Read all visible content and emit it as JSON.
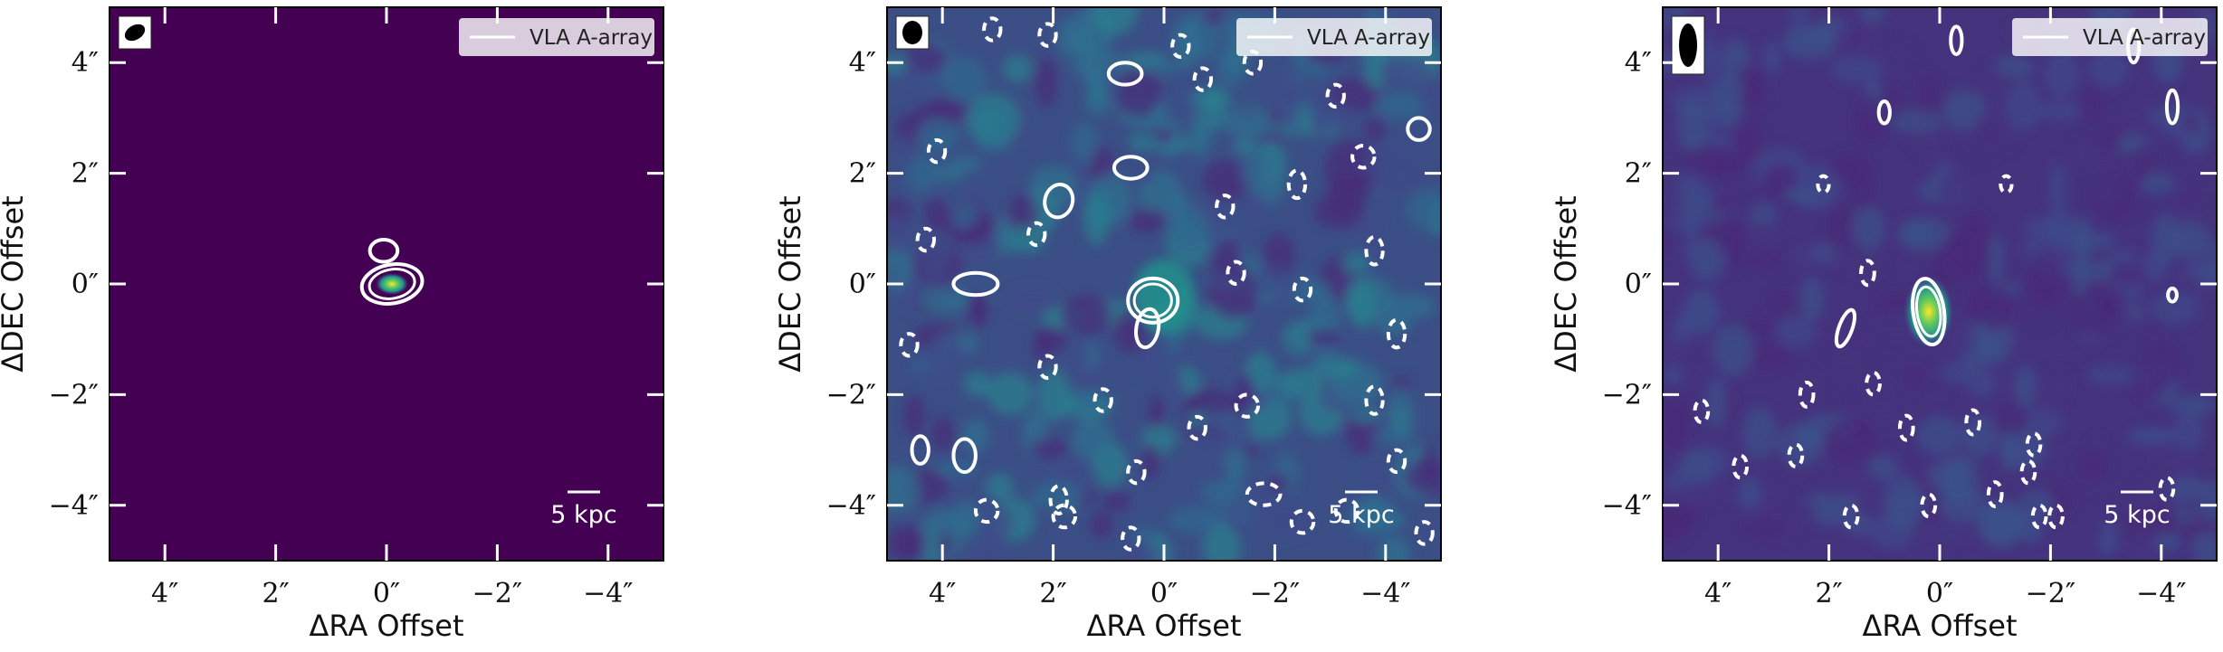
{
  "chart_data": [
    {
      "type": "heatmap",
      "panel": "left",
      "xlabel": "ΔRA Offset",
      "ylabel": "ΔDEC Offset",
      "xlim": [
        5,
        -5
      ],
      "ylim": [
        -5,
        5
      ],
      "xticks": [
        4,
        2,
        0,
        -2,
        -4
      ],
      "yticks": [
        4,
        2,
        0,
        -2,
        -4
      ],
      "xtick_labels": [
        "4″",
        "2″",
        "0″",
        "−2″",
        "−4″"
      ],
      "ytick_labels": [
        "4″",
        "2″",
        "0″",
        "−2″",
        "−4″"
      ],
      "legend": {
        "label": "VLA A-array",
        "placement": "top-right"
      },
      "scale_bar": {
        "label": "5 kpc"
      },
      "beam": {
        "placement": "top-left"
      },
      "colormap": "viridis",
      "background_color": "#440154",
      "source": {
        "ra": -0.1,
        "dec": 0.0
      },
      "contours_positive": [
        [
          -0.1,
          0.0,
          0.55,
          0.35,
          -10
        ],
        [
          0.05,
          0.6,
          0.25,
          0.2,
          0
        ]
      ],
      "contours_negative": []
    },
    {
      "type": "heatmap",
      "panel": "middle",
      "xlabel": "ΔRA Offset",
      "ylabel": "ΔDEC Offset",
      "xlim": [
        5,
        -5
      ],
      "ylim": [
        -5,
        5
      ],
      "xticks": [
        4,
        2,
        0,
        -2,
        -4
      ],
      "yticks": [
        4,
        2,
        0,
        -2,
        -4
      ],
      "xtick_labels": [
        "4″",
        "2″",
        "0″",
        "−2″",
        "−4″"
      ],
      "ytick_labels": [
        "4″",
        "2″",
        "0″",
        "−2″",
        "−4″"
      ],
      "legend": {
        "label": "VLA A-array",
        "placement": "top-right"
      },
      "scale_bar": {
        "label": "5 kpc"
      },
      "beam": {
        "placement": "top-left"
      },
      "colormap": "viridis",
      "background_color": "#3b4f86",
      "source": {
        "ra": 0.0,
        "dec": -0.2
      },
      "contours_positive": [
        [
          0.2,
          -0.3,
          0.45,
          0.4,
          0
        ],
        [
          0.3,
          -0.8,
          0.2,
          0.35,
          10
        ],
        [
          3.4,
          0.0,
          0.4,
          0.2,
          0
        ],
        [
          1.9,
          1.5,
          0.25,
          0.3,
          15
        ],
        [
          0.6,
          2.1,
          0.3,
          0.2,
          0
        ],
        [
          0.7,
          3.8,
          0.3,
          0.2,
          0
        ],
        [
          -4.6,
          2.8,
          0.2,
          0.2,
          0
        ],
        [
          4.4,
          -3.0,
          0.15,
          0.25,
          0
        ],
        [
          3.6,
          -3.1,
          0.2,
          0.3,
          0
        ]
      ],
      "contours_negative": [
        [
          3.1,
          4.6,
          0.15,
          0.2,
          0
        ],
        [
          2.1,
          4.5,
          0.15,
          0.2,
          0
        ],
        [
          -0.3,
          4.3,
          0.15,
          0.2,
          0
        ],
        [
          -0.7,
          3.7,
          0.15,
          0.2,
          0
        ],
        [
          -1.6,
          4.0,
          0.15,
          0.2,
          0
        ],
        [
          -3.1,
          3.4,
          0.15,
          0.2,
          0
        ],
        [
          -3.6,
          2.3,
          0.2,
          0.2,
          0
        ],
        [
          -2.4,
          1.8,
          0.15,
          0.25,
          0
        ],
        [
          -1.1,
          1.4,
          0.15,
          0.2,
          0
        ],
        [
          4.1,
          2.4,
          0.15,
          0.2,
          0
        ],
        [
          4.3,
          0.8,
          0.15,
          0.2,
          0
        ],
        [
          2.3,
          0.9,
          0.15,
          0.2,
          0
        ],
        [
          -1.3,
          0.2,
          0.15,
          0.2,
          0
        ],
        [
          -2.5,
          -0.1,
          0.15,
          0.2,
          0
        ],
        [
          -3.8,
          0.6,
          0.15,
          0.25,
          0
        ],
        [
          -4.2,
          -0.9,
          0.15,
          0.25,
          0
        ],
        [
          4.6,
          -1.1,
          0.15,
          0.2,
          0
        ],
        [
          2.1,
          -1.5,
          0.15,
          0.2,
          0
        ],
        [
          1.1,
          -2.1,
          0.15,
          0.2,
          0
        ],
        [
          -0.6,
          -2.6,
          0.15,
          0.2,
          0
        ],
        [
          -1.5,
          -2.2,
          0.2,
          0.2,
          0
        ],
        [
          -3.8,
          -2.1,
          0.15,
          0.25,
          0
        ],
        [
          3.2,
          -4.1,
          0.2,
          0.2,
          0
        ],
        [
          1.8,
          -4.2,
          0.2,
          0.2,
          0
        ],
        [
          0.5,
          -3.4,
          0.15,
          0.2,
          0
        ],
        [
          -1.8,
          -3.8,
          0.3,
          0.2,
          0
        ],
        [
          -2.5,
          -4.3,
          0.2,
          0.2,
          0
        ],
        [
          -3.3,
          -4.1,
          0.2,
          0.2,
          0
        ],
        [
          -4.2,
          -3.2,
          0.15,
          0.2,
          0
        ],
        [
          1.9,
          -3.9,
          0.15,
          0.25,
          0
        ],
        [
          0.6,
          -4.6,
          0.15,
          0.2,
          0
        ],
        [
          -4.7,
          -4.5,
          0.15,
          0.2,
          0
        ]
      ]
    },
    {
      "type": "heatmap",
      "panel": "right",
      "xlabel": "ΔRA Offset",
      "ylabel": "ΔDEC Offset",
      "xlim": [
        5,
        -5
      ],
      "ylim": [
        -5,
        5
      ],
      "xticks": [
        4,
        2,
        0,
        -2,
        -4
      ],
      "yticks": [
        4,
        2,
        0,
        -2,
        -4
      ],
      "xtick_labels": [
        "4″",
        "2″",
        "0″",
        "−2″",
        "−4″"
      ],
      "ytick_labels": [
        "4″",
        "2″",
        "0″",
        "−2″",
        "−4″"
      ],
      "legend": {
        "label": "VLA A-array",
        "placement": "top-right"
      },
      "scale_bar": {
        "label": "5 kpc"
      },
      "beam": {
        "placement": "top-left"
      },
      "colormap": "viridis",
      "background_color": "#45337d",
      "source": {
        "ra": 0.2,
        "dec": -0.5
      },
      "contours_positive": [
        [
          0.2,
          -0.5,
          0.28,
          0.6,
          -8
        ],
        [
          1.7,
          -0.8,
          0.12,
          0.35,
          20
        ],
        [
          -4.2,
          3.2,
          0.1,
          0.3,
          0
        ],
        [
          -3.5,
          4.3,
          0.1,
          0.3,
          0
        ],
        [
          -0.3,
          4.4,
          0.1,
          0.25,
          0
        ],
        [
          1.0,
          3.1,
          0.1,
          0.2,
          0
        ],
        [
          -4.2,
          -0.2,
          0.08,
          0.12,
          0
        ]
      ],
      "contours_negative": [
        [
          2.1,
          1.8,
          0.1,
          0.15,
          0
        ],
        [
          -1.2,
          1.8,
          0.1,
          0.15,
          0
        ],
        [
          1.3,
          0.2,
          0.12,
          0.22,
          0
        ],
        [
          2.4,
          -2.0,
          0.12,
          0.22,
          0
        ],
        [
          1.2,
          -1.8,
          0.12,
          0.2,
          0
        ],
        [
          0.6,
          -2.6,
          0.12,
          0.22,
          0
        ],
        [
          -0.6,
          -2.5,
          0.12,
          0.22,
          0
        ],
        [
          -1.6,
          -3.4,
          0.12,
          0.2,
          0
        ],
        [
          -1.0,
          -3.8,
          0.12,
          0.22,
          0
        ],
        [
          0.2,
          -4.0,
          0.12,
          0.2,
          0
        ],
        [
          1.6,
          -4.2,
          0.12,
          0.2,
          0
        ],
        [
          2.6,
          -3.1,
          0.12,
          0.2,
          0
        ],
        [
          3.6,
          -3.3,
          0.12,
          0.2,
          0
        ],
        [
          4.3,
          -2.3,
          0.12,
          0.2,
          0
        ],
        [
          -1.8,
          -4.2,
          0.12,
          0.2,
          0
        ],
        [
          -2.1,
          -4.2,
          0.12,
          0.2,
          0
        ],
        [
          -4.1,
          -3.7,
          0.12,
          0.2,
          0
        ],
        [
          -1.7,
          -2.9,
          0.12,
          0.2,
          0
        ]
      ]
    }
  ]
}
